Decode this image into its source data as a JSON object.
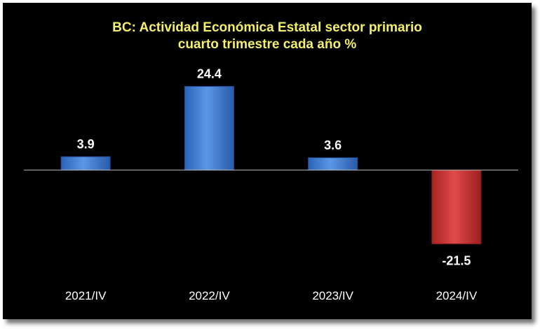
{
  "chart_data": {
    "type": "bar",
    "title_lines": [
      "BC: Actividad Económica Estatal sector primario",
      "cuarto trimestre cada año %"
    ],
    "categories": [
      "2021/IV",
      "2022/IV",
      "2023/IV",
      "2024/IV"
    ],
    "values": [
      3.9,
      24.4,
      3.6,
      -21.5
    ],
    "data_labels": [
      "3.9",
      "24.4",
      "3.6",
      "-21.5"
    ],
    "positive_color": "#4a86d8",
    "negative_color": "#d63a3a",
    "background_color": "#000000",
    "title_color": "#f4f06a",
    "xlabel": "",
    "ylabel": "",
    "legend": "none",
    "grid": false
  }
}
